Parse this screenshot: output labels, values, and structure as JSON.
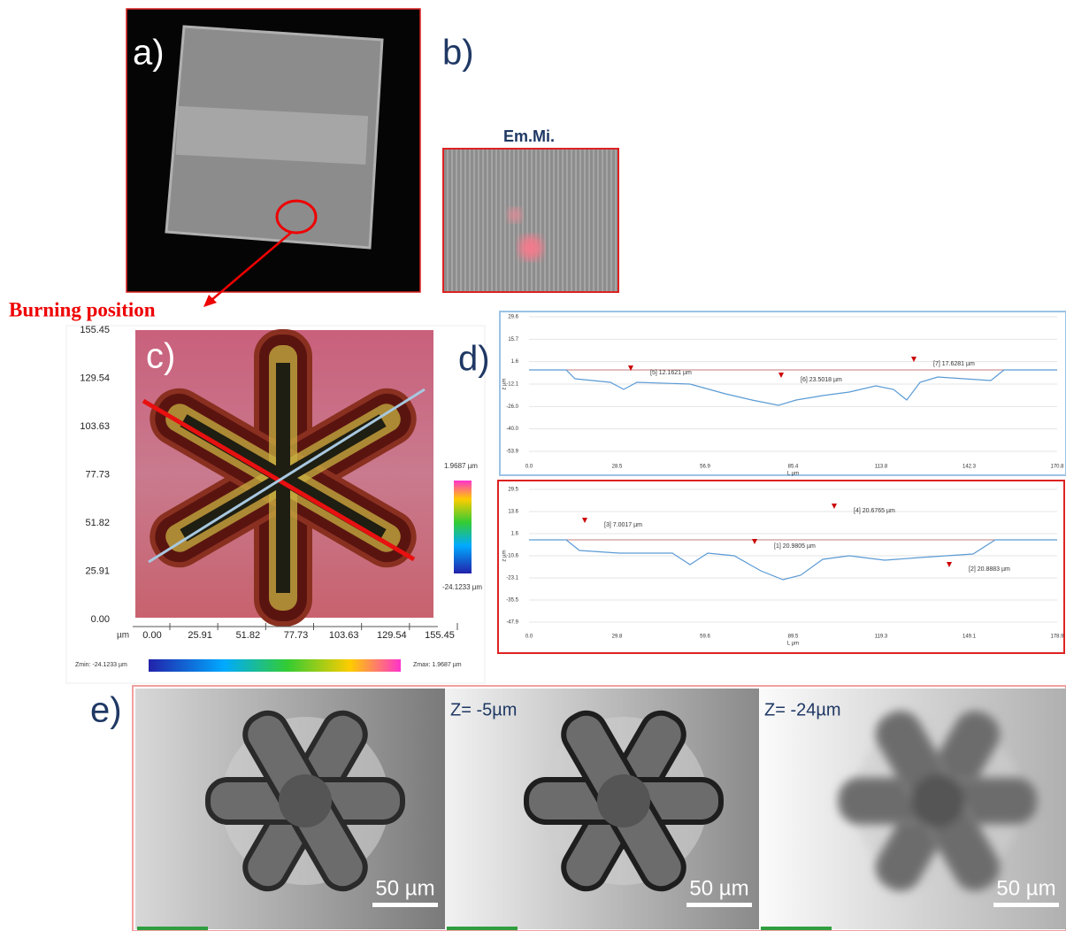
{
  "panel_a": {
    "label": "a)",
    "annotation": "Burning position"
  },
  "panel_b": {
    "label": "b)",
    "title": "Em.Mi."
  },
  "panel_c": {
    "label": "c)",
    "y_ticks": [
      "155.45",
      "129.54",
      "103.63",
      "77.73",
      "51.82",
      "25.91",
      "0.00"
    ],
    "x_unit": "µm",
    "x_ticks": [
      "0.00",
      "25.91",
      "51.82",
      "77.73",
      "103.63",
      "129.54",
      "155.45"
    ],
    "colorbar_max": "1.9687 µm",
    "colorbar_min": "-24.1233 µm",
    "z_min": "Zmin: -24.1233 µm",
    "z_max": "Zmax: 1.9687 µm"
  },
  "panel_d": {
    "label": "d)",
    "profiles": [
      {
        "y_ticks": [
          "29.6",
          "15.7",
          "1.6",
          "-12.1",
          "-26.0",
          "-40.0",
          "-53.9"
        ],
        "x_ticks": [
          "0.0",
          "28.5",
          "56.9",
          "85.4",
          "113.8",
          "142.3",
          "170.8"
        ],
        "y_axis": "z µm",
        "x_axis": "L µm",
        "measurements": [
          "[5] 12.1621 µm",
          "[6] 23.5018 µm",
          "[7] 17.6281 µm"
        ]
      },
      {
        "y_ticks": [
          "29.5",
          "13.6",
          "1.6",
          "-10.6",
          "-23.1",
          "-35.5",
          "-47.9"
        ],
        "x_ticks": [
          "0.0",
          "29.8",
          "59.6",
          "89.5",
          "119.3",
          "149.1",
          "178.9"
        ],
        "y_axis": "z µm",
        "x_axis": "L µm",
        "measurements": [
          "[3] 7.0017 µm",
          "[1] 20.9805 µm",
          "[4] 20.6765 µm",
          "[2] 20.8883 µm"
        ]
      }
    ]
  },
  "panel_e": {
    "label": "e)",
    "images": [
      {
        "scale": "50 µm"
      },
      {
        "depth": "Z= -5µm",
        "scale": "50 µm"
      },
      {
        "depth": "Z= -24µm",
        "scale": "50 µm"
      }
    ]
  }
}
